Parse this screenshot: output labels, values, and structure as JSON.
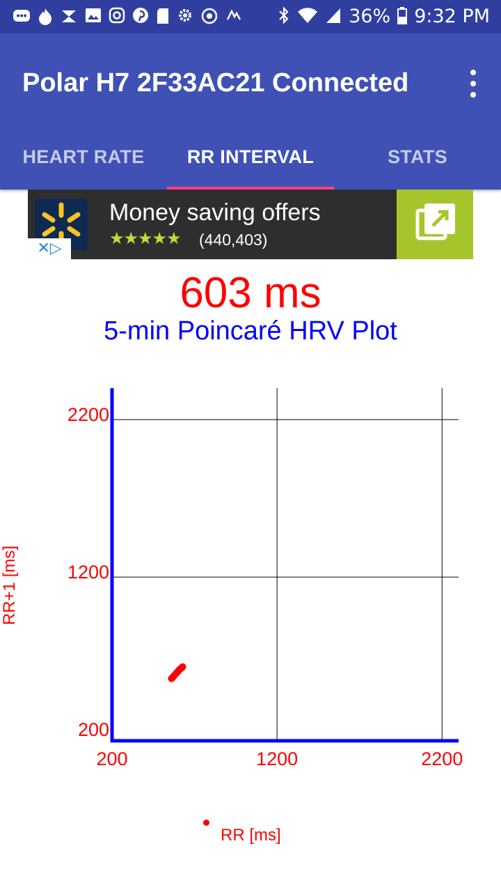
{
  "status_bar": {
    "battery_percent": "36%",
    "time": "9:32 PM",
    "left_icons": [
      "chat-icon",
      "tinder-icon",
      "hourglass-icon",
      "image-icon",
      "instagram-icon",
      "pinterest-icon",
      "sd-card-icon",
      "gear-icon",
      "sync-icon",
      "fitness-icon"
    ],
    "right_icons": [
      "bluetooth-icon",
      "wifi-icon",
      "signal-icon",
      "battery-icon"
    ]
  },
  "app_bar": {
    "title": "Polar H7 2F33AC21 Connected",
    "menu_icon": "overflow-menu-icon",
    "background": "#3F51B5",
    "status_background": "#303F9F",
    "tab_indicator": "#FF4081"
  },
  "tabs": [
    {
      "label": "HEART RATE",
      "active": false
    },
    {
      "label": "RR INTERVAL",
      "active": true
    },
    {
      "label": "STATS",
      "active": false
    }
  ],
  "ad": {
    "title": "Money saving offers",
    "rating_stars": "★★★★★",
    "rating": 4.5,
    "review_count": "(440,403)",
    "choice_mark": "✕▷",
    "open_icon": "open-external-icon",
    "accent": "#a6c52b"
  },
  "main": {
    "rr_value": "603 ms",
    "plot_title": "5-min Poincaré HRV Plot"
  },
  "chart_data": {
    "type": "scatter",
    "title": "5-min Poincaré HRV Plot",
    "xlabel": "RR [ms]",
    "ylabel": "RR+1 [ms]",
    "xlim": [
      200,
      2300
    ],
    "ylim": [
      160,
      2400
    ],
    "x_ticks": [
      200,
      1200,
      2200
    ],
    "y_ticks": [
      200,
      1200,
      2200
    ],
    "grid": true,
    "series": [
      {
        "color": "#ff0000",
        "x": [
          560,
          565,
          570,
          575,
          580,
          585,
          590,
          595,
          600,
          603,
          606,
          610,
          615,
          620,
          625,
          628
        ],
        "y": [
          555,
          560,
          565,
          572,
          578,
          584,
          590,
          596,
          600,
          605,
          609,
          613,
          618,
          622,
          626,
          630
        ]
      }
    ]
  }
}
